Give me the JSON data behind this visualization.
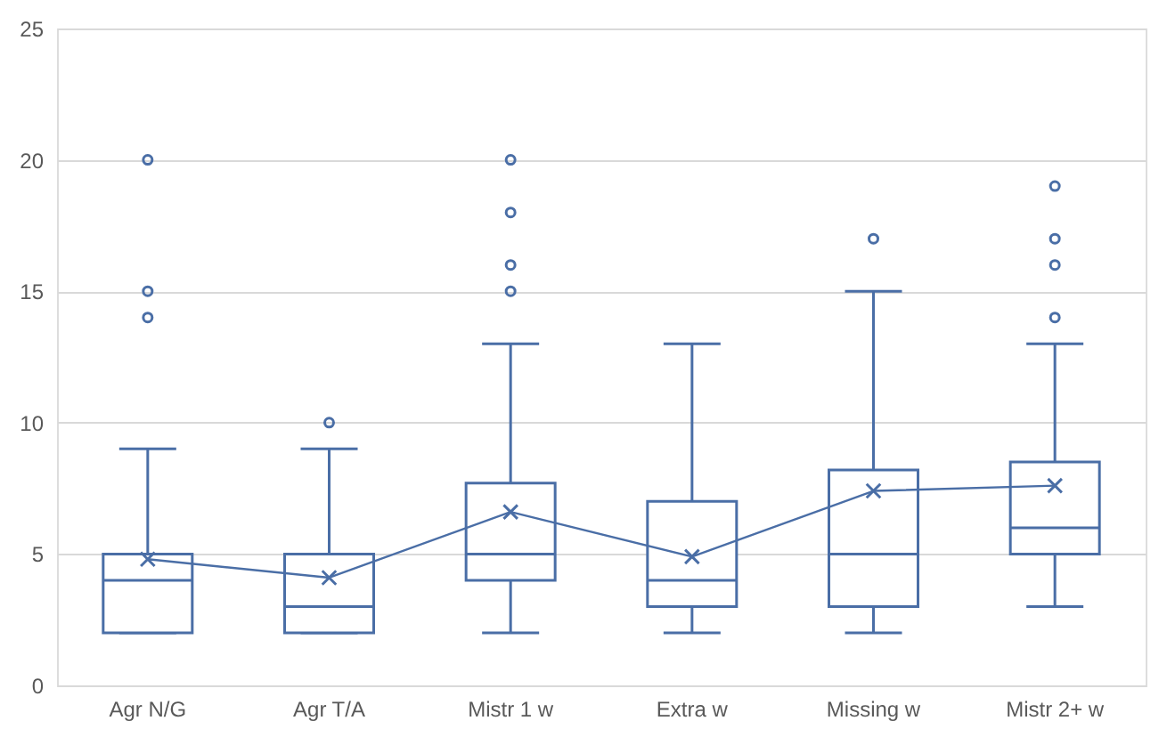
{
  "chart_data": {
    "type": "box",
    "categories": [
      "Agr N/G",
      "Agr T/A",
      "Mistr 1 w",
      "Extra w",
      "Missing w",
      "Mistr 2+ w"
    ],
    "ylim": [
      0,
      25
    ],
    "yticks": [
      0,
      5,
      10,
      15,
      20,
      25
    ],
    "grid": "y",
    "series": [
      {
        "color": "#4a6ea6",
        "boxes": [
          {
            "low": 2,
            "q1": 2,
            "median": 4,
            "q3": 5,
            "high": 9,
            "outliers": [
              14,
              15,
              20
            ]
          },
          {
            "low": 2,
            "q1": 2,
            "median": 3,
            "q3": 5,
            "high": 9,
            "outliers": [
              10
            ]
          },
          {
            "low": 2,
            "q1": 4,
            "median": 5,
            "q3": 7.7,
            "high": 13,
            "outliers": [
              15,
              16,
              18,
              20
            ]
          },
          {
            "low": 2,
            "q1": 3,
            "median": 4,
            "q3": 7,
            "high": 13
          },
          {
            "low": 2,
            "q1": 3,
            "median": 5,
            "q3": 8.2,
            "high": 15,
            "outliers": [
              17
            ]
          },
          {
            "low": 3,
            "q1": 5,
            "median": 6,
            "q3": 8.5,
            "high": 13,
            "outliers": [
              14,
              16,
              17,
              19
            ]
          }
        ]
      },
      {
        "type": "line",
        "color": "#4a6ea6",
        "marker": "cross",
        "values": [
          4.8,
          4.1,
          6.6,
          4.9,
          7.4,
          7.6
        ]
      }
    ]
  }
}
